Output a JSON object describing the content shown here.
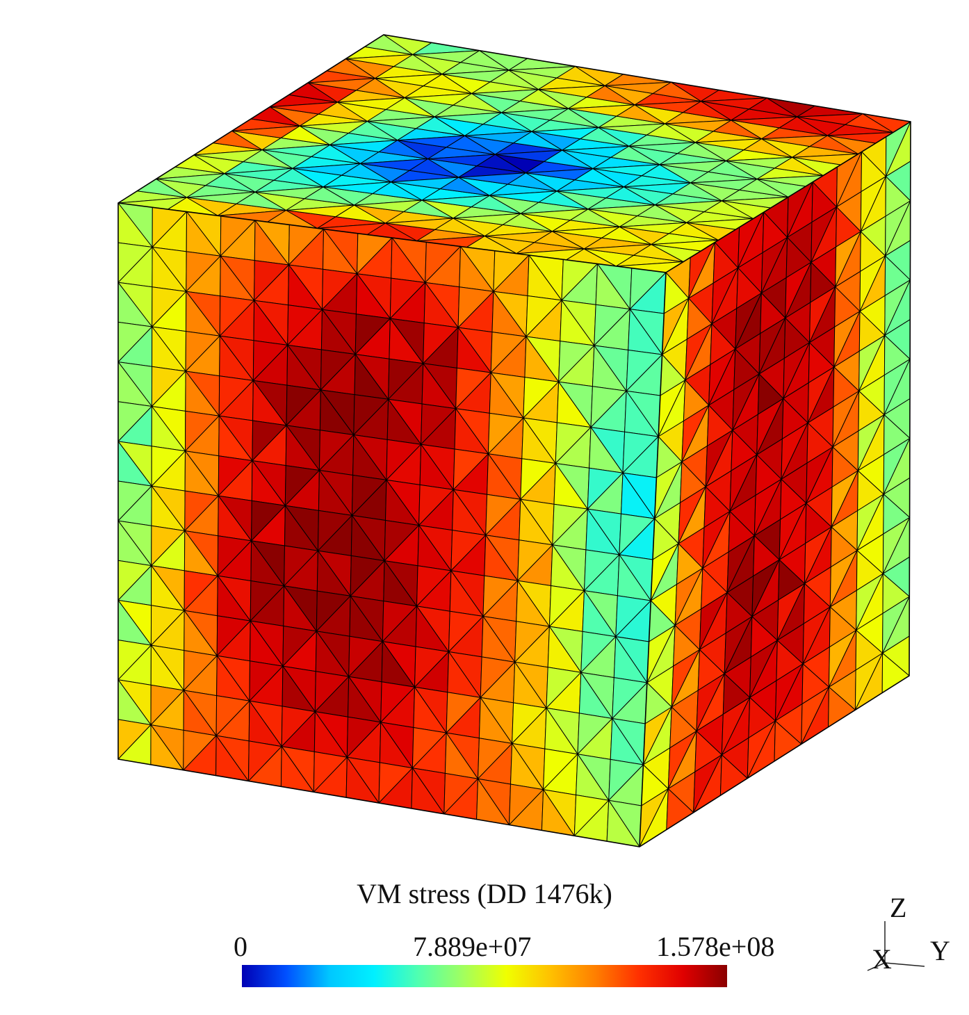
{
  "legend": {
    "title": "VM stress (DD 1476k)",
    "min_label": "0",
    "mid_label": "7.889e+07",
    "max_label": "1.578e+08",
    "colormap": [
      "#0000b4",
      "#0050ff",
      "#00c8ff",
      "#00f0ff",
      "#50ffb0",
      "#a0ff60",
      "#f0ff00",
      "#ffc000",
      "#ff8000",
      "#ff3000",
      "#e00000",
      "#8a0000"
    ]
  },
  "axes_triad": {
    "z": "Z",
    "x": "X",
    "y": "Y"
  },
  "mesh": {
    "edge_color": "#000000",
    "front_face_values": [
      [
        0.45,
        0.55,
        0.62,
        0.7,
        0.72,
        0.72,
        0.7,
        0.65,
        0.52,
        0.42,
        0.38
      ],
      [
        0.42,
        0.6,
        0.8,
        0.9,
        0.95,
        0.95,
        0.92,
        0.75,
        0.55,
        0.4,
        0.33
      ],
      [
        0.4,
        0.58,
        0.85,
        0.98,
        1.0,
        0.96,
        0.93,
        0.78,
        0.58,
        0.4,
        0.3
      ],
      [
        0.38,
        0.57,
        0.82,
        0.93,
        0.99,
        0.95,
        0.92,
        0.82,
        0.55,
        0.36,
        0.3
      ],
      [
        0.4,
        0.6,
        0.88,
        0.98,
        0.98,
        0.96,
        0.9,
        0.8,
        0.6,
        0.38,
        0.32
      ],
      [
        0.42,
        0.62,
        0.88,
        0.95,
        0.98,
        1.0,
        0.9,
        0.78,
        0.62,
        0.4,
        0.34
      ],
      [
        0.46,
        0.65,
        0.8,
        0.9,
        0.92,
        0.92,
        0.85,
        0.72,
        0.6,
        0.45,
        0.4
      ],
      [
        0.52,
        0.75,
        0.82,
        0.82,
        0.8,
        0.82,
        0.8,
        0.78,
        0.72,
        0.55,
        0.48
      ]
    ],
    "right_face_values": [
      [
        0.5,
        0.8,
        0.9,
        0.92,
        0.88,
        0.62,
        0.4
      ],
      [
        0.42,
        0.85,
        0.95,
        0.98,
        0.92,
        0.6,
        0.35
      ],
      [
        0.4,
        0.82,
        0.95,
        0.98,
        0.9,
        0.58,
        0.35
      ],
      [
        0.38,
        0.8,
        0.92,
        0.95,
        0.88,
        0.55,
        0.38
      ],
      [
        0.4,
        0.78,
        0.95,
        0.98,
        0.85,
        0.55,
        0.4
      ],
      [
        0.45,
        0.8,
        0.92,
        0.92,
        0.82,
        0.55,
        0.42
      ],
      [
        0.55,
        0.82,
        0.85,
        0.82,
        0.78,
        0.6,
        0.48
      ]
    ],
    "top_face_values": [
      [
        0.5,
        0.42,
        0.55,
        0.72,
        0.92,
        0.98,
        0.95,
        0.85,
        0.6,
        0.4
      ],
      [
        0.7,
        0.38,
        0.32,
        0.3,
        0.4,
        0.5,
        0.55,
        0.62,
        0.45,
        0.38
      ],
      [
        0.92,
        0.55,
        0.3,
        0.12,
        0.05,
        0.15,
        0.35,
        0.45,
        0.52,
        0.5
      ],
      [
        0.95,
        0.62,
        0.35,
        0.15,
        0.02,
        0.1,
        0.3,
        0.48,
        0.7,
        0.72
      ],
      [
        0.7,
        0.6,
        0.45,
        0.3,
        0.2,
        0.28,
        0.4,
        0.55,
        0.85,
        0.92
      ],
      [
        0.55,
        0.62,
        0.55,
        0.42,
        0.38,
        0.4,
        0.48,
        0.62,
        0.9,
        0.95
      ],
      [
        0.5,
        0.55,
        0.6,
        0.55,
        0.52,
        0.5,
        0.55,
        0.65,
        0.8,
        0.78
      ]
    ]
  }
}
